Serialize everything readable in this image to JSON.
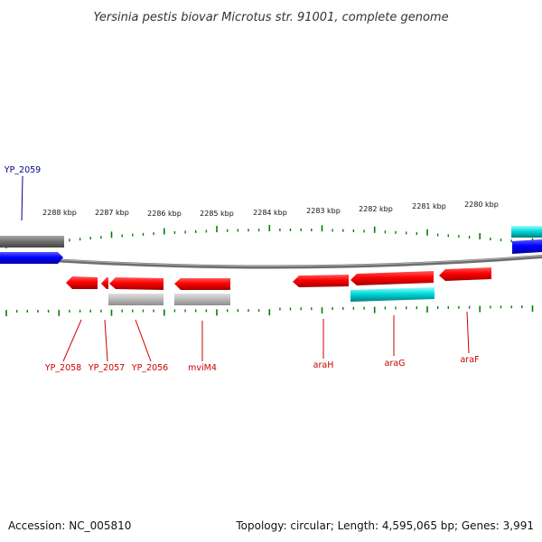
{
  "title": "Yersinia pestis biovar Microtus str. 91001, complete genome",
  "footer": {
    "accession": "Accession: NC_005810",
    "summary": "Topology: circular; Length: 4,595,065 bp; Genes: 3,991"
  },
  "colors": {
    "forward_gene": "#0000ee",
    "reverse_gene": "#ee0000",
    "backbone": "#777777",
    "tick": "#008000",
    "pseudo": "#b4b4b4",
    "cyan_feature": "#00c8c8",
    "label_top": "#00008b",
    "label_bottom": "#cc0000"
  },
  "scale_labels": [
    "2288 kbp",
    "2287 kbp",
    "2286 kbp",
    "2285 kbp",
    "2284 kbp",
    "2283 kbp",
    "2282 kbp",
    "2281 kbp",
    "2280 kbp"
  ],
  "top_labels": [
    "YP_2059"
  ],
  "bottom_labels": [
    "YP_2058",
    "YP_2057",
    "YP_2056",
    "mviM4",
    "araH",
    "araG",
    "araF"
  ]
}
